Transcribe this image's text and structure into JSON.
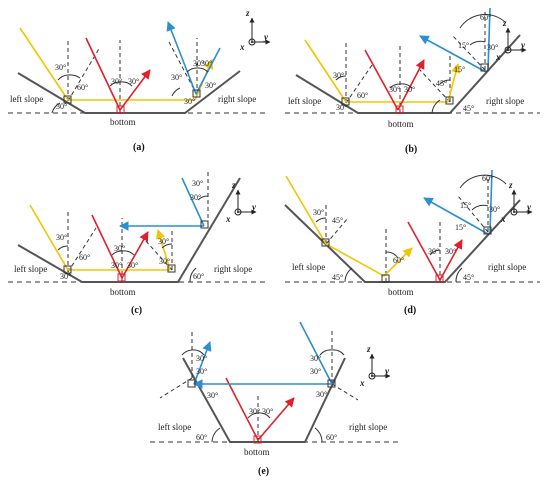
{
  "colors": {
    "slope": "#555555",
    "dashed": "#333333",
    "yellow": "#f2c500",
    "red": "#e0202a",
    "blue": "#2b8fd0",
    "text": "#222222"
  },
  "common": {
    "left_slope": "left slope",
    "right_slope": "right slope",
    "bottom": "bottom",
    "axis_z": "z",
    "axis_y": "y",
    "axis_x": "x"
  },
  "panels": {
    "a": {
      "caption": "(a)",
      "angles": [
        "30°",
        "30°",
        "60°",
        "30°",
        "30°",
        "30°",
        "30°",
        "30°",
        "30°",
        "30°"
      ]
    },
    "b": {
      "caption": "(b)",
      "angles": [
        "60°",
        "15°",
        "30°",
        "30°",
        "60°",
        "30°",
        "30°",
        "45°",
        "15°",
        "30°",
        "45°"
      ]
    },
    "c": {
      "caption": "(c)",
      "angles": [
        "30°",
        "30°",
        "30°",
        "30°",
        "30°",
        "60°",
        "30°",
        "30°",
        "30°",
        "30°",
        "60°"
      ]
    },
    "d": {
      "caption": "(d)",
      "angles": [
        "60°",
        "15°",
        "30°",
        "15°",
        "30°",
        "45°",
        "60°",
        "30°",
        "30°",
        "45°",
        "45°"
      ]
    },
    "e": {
      "caption": "(e)",
      "angles": [
        "30°",
        "30°",
        "30°",
        "30°",
        "30°",
        "30°",
        "30°",
        "30°",
        "60°",
        "60°"
      ]
    }
  }
}
